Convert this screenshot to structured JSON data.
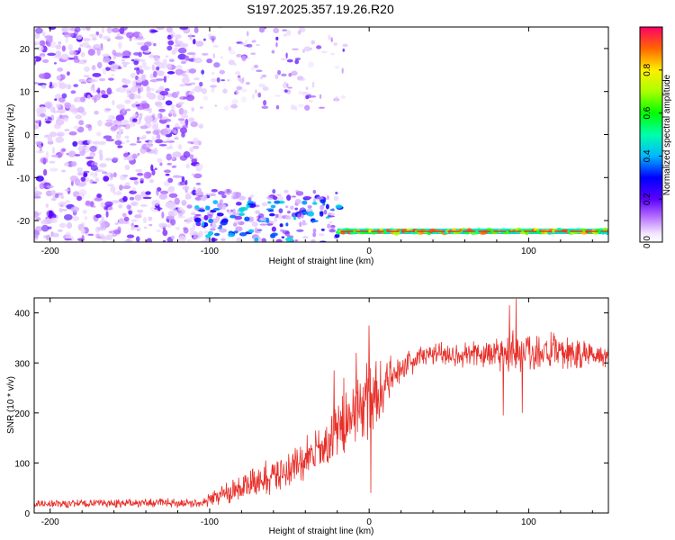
{
  "title": "S197.2025.357.19.26.R20",
  "chart_data": [
    {
      "id": "spectrogram",
      "type": "heatmap",
      "xlabel": "Height of straight line (km)",
      "ylabel": "Frequency (Hz)",
      "xlim": [
        -210,
        150
      ],
      "ylim": [
        -25,
        25
      ],
      "xticks": [
        -200,
        -100,
        0,
        100
      ],
      "yticks": [
        -20,
        -10,
        0,
        10,
        20
      ],
      "colorbar": {
        "label": "Normalized spectral amplitude",
        "range": [
          0,
          1
        ],
        "ticks": [
          0.0,
          0.2,
          0.4,
          0.6,
          0.8
        ],
        "tick_labels": [
          "0.0",
          "0.2",
          "0.4",
          "0.6",
          "0.8"
        ]
      },
      "features": [
        {
          "name": "scattered low-amplitude noise",
          "x_range": [
            -210,
            -105
          ],
          "y_range": [
            -25,
            25
          ],
          "amplitude": 0.05
        },
        {
          "name": "sparse noise",
          "x_range": [
            -100,
            -20
          ],
          "y_range": [
            8,
            25
          ],
          "amplitude": 0.05
        },
        {
          "name": "descending tone blobs",
          "x_range": [
            -110,
            -20
          ],
          "y_range": [
            -25,
            -14
          ],
          "amplitude": 0.25
        },
        {
          "name": "carrier line",
          "x_range": [
            -20,
            150
          ],
          "y_center": -22.5,
          "amplitude": 0.9
        }
      ]
    },
    {
      "id": "snr",
      "type": "line",
      "xlabel": "Height of straight line (km)",
      "ylabel": "SNR (10 * v/v)",
      "xlim": [
        -210,
        150
      ],
      "ylim": [
        0,
        430
      ],
      "xticks": [
        -200,
        -100,
        0,
        100
      ],
      "yticks": [
        0,
        100,
        200,
        300,
        400
      ],
      "color": "#e8302a",
      "profile": {
        "x": [
          -210,
          -150,
          -105,
          -90,
          -75,
          -60,
          -45,
          -30,
          -20,
          -10,
          0,
          10,
          20,
          30,
          45,
          60,
          80,
          100,
          120,
          150
        ],
        "y": [
          18,
          20,
          20,
          40,
          55,
          75,
          95,
          125,
          160,
          200,
          225,
          255,
          290,
          310,
          320,
          315,
          320,
          325,
          320,
          315
        ]
      },
      "noise_amplitude": [
        {
          "x": -210,
          "amp": 10
        },
        {
          "x": -105,
          "amp": 10
        },
        {
          "x": -90,
          "amp": 25
        },
        {
          "x": -30,
          "amp": 60
        },
        {
          "x": 0,
          "amp": 90
        },
        {
          "x": 20,
          "amp": 30
        },
        {
          "x": 60,
          "amp": 30
        },
        {
          "x": 90,
          "amp": 55
        },
        {
          "x": 150,
          "amp": 30
        }
      ],
      "spikes": [
        {
          "x": 0,
          "y": 375
        },
        {
          "x": 1,
          "y": 40
        },
        {
          "x": -22,
          "y": 285
        },
        {
          "x": -16,
          "y": 270
        },
        {
          "x": 88,
          "y": 415
        },
        {
          "x": 92,
          "y": 428
        },
        {
          "x": 84,
          "y": 195
        },
        {
          "x": 96,
          "y": 200
        },
        {
          "x": -8,
          "y": 320
        }
      ]
    }
  ]
}
